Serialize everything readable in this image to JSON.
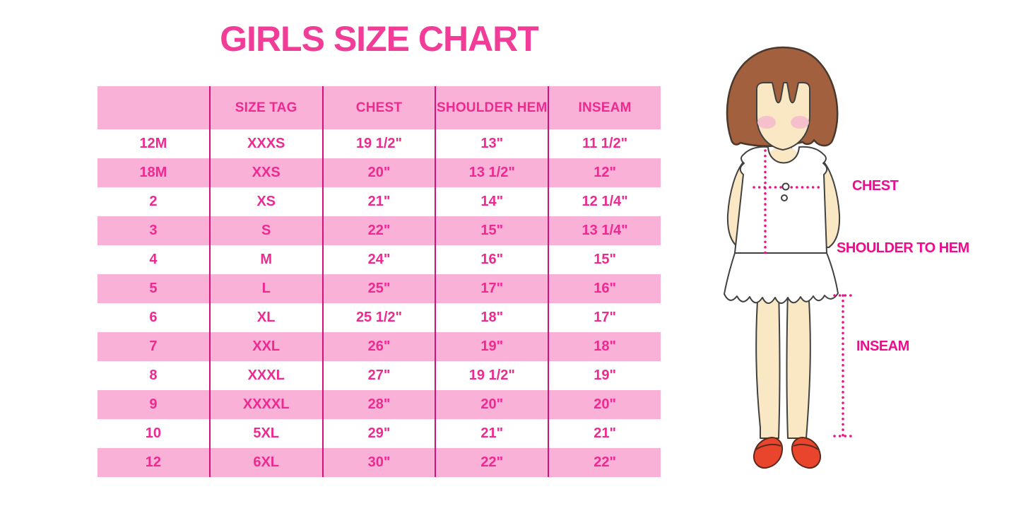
{
  "chart_data": {
    "type": "table",
    "title": "GIRLS SIZE CHART",
    "headers": [
      "",
      "SIZE TAG",
      "CHEST",
      "SHOULDER HEM",
      "INSEAM"
    ],
    "rows": [
      [
        "12M",
        "XXXS",
        "19 1/2\"",
        "13\"",
        "11 1/2\""
      ],
      [
        "18M",
        "XXS",
        "20\"",
        "13 1/2\"",
        "12\""
      ],
      [
        "2",
        "XS",
        "21\"",
        "14\"",
        "12 1/4\""
      ],
      [
        "3",
        "S",
        "22\"",
        "15\"",
        "13 1/4\""
      ],
      [
        "4",
        "M",
        "24\"",
        "16\"",
        "15\""
      ],
      [
        "5",
        "L",
        "25\"",
        "17\"",
        "16\""
      ],
      [
        "6",
        "XL",
        "25 1/2\"",
        "18\"",
        "17\""
      ],
      [
        "7",
        "XXL",
        "26\"",
        "19\"",
        "18\""
      ],
      [
        "8",
        "XXXL",
        "27\"",
        "19 1/2\"",
        "19\""
      ],
      [
        "9",
        "XXXXL",
        "28\"",
        "20\"",
        "20\""
      ],
      [
        "10",
        "5XL",
        "29\"",
        "21\"",
        "21\""
      ],
      [
        "12",
        "6XL",
        "30\"",
        "22\"",
        "22\""
      ]
    ]
  },
  "figure": {
    "labels": {
      "chest": "CHEST",
      "shoulder_to_hem": "SHOULDER TO HEM",
      "inseam": "INSEAM"
    }
  },
  "colors": {
    "title_pink": "#f23d98",
    "table_text_pink": "#ee2a90",
    "row_band_pink": "#fab1d8",
    "column_divider_pink": "#d4107a",
    "label_magenta": "#ec0c8c",
    "dotted_line_magenta": "#ec1089",
    "hair_brown": "#a2603f",
    "skin_tone": "#fae7c4",
    "shoe_red": "#e8452c"
  }
}
